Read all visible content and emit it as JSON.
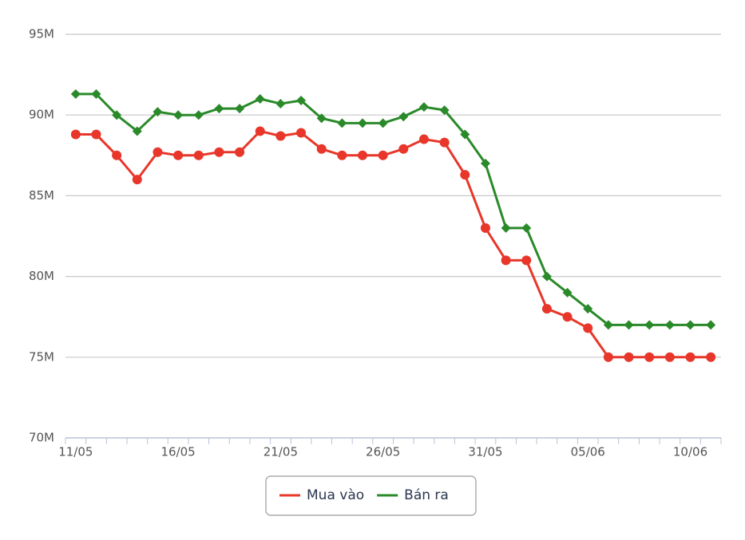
{
  "chart_data": {
    "type": "line",
    "categories": [
      "11/05",
      null,
      null,
      null,
      null,
      "16/05",
      null,
      null,
      null,
      null,
      "21/05",
      null,
      null,
      null,
      null,
      "26/05",
      null,
      null,
      null,
      null,
      "31/05",
      null,
      null,
      null,
      null,
      "05/06",
      null,
      null,
      null,
      null,
      "10/06",
      null
    ],
    "series": [
      {
        "name": "Mua vào",
        "color": "#e8372a",
        "marker": "circle",
        "values": [
          88800000,
          88800000,
          87500000,
          86000000,
          87700000,
          87500000,
          87500000,
          87700000,
          87700000,
          89000000,
          88700000,
          88900000,
          87900000,
          87500000,
          87500000,
          87500000,
          87900000,
          88500000,
          88300000,
          86300000,
          83000000,
          81000000,
          81000000,
          78000000,
          77500000,
          76800000,
          75000000,
          75000000,
          75000000,
          75000000,
          75000000,
          75000000
        ]
      },
      {
        "name": "Bán ra",
        "color": "#2a8a2a",
        "marker": "diamond",
        "values": [
          91300000,
          91300000,
          90000000,
          89000000,
          90200000,
          90000000,
          90000000,
          90400000,
          90400000,
          91000000,
          90700000,
          90900000,
          89800000,
          89500000,
          89500000,
          89500000,
          89900000,
          90500000,
          90300000,
          88800000,
          87000000,
          83000000,
          83000000,
          80000000,
          79000000,
          78000000,
          77000000,
          77000000,
          77000000,
          77000000,
          77000000,
          77000000
        ]
      }
    ],
    "ylim": [
      70000000,
      95000000
    ],
    "yticks": [
      {
        "value": 70000000,
        "label": "70M"
      },
      {
        "value": 75000000,
        "label": "75M"
      },
      {
        "value": 80000000,
        "label": "80M"
      },
      {
        "value": 85000000,
        "label": "85M"
      },
      {
        "value": 90000000,
        "label": "90M"
      },
      {
        "value": 95000000,
        "label": "95M"
      }
    ],
    "grid": true,
    "legend": "bottom"
  }
}
